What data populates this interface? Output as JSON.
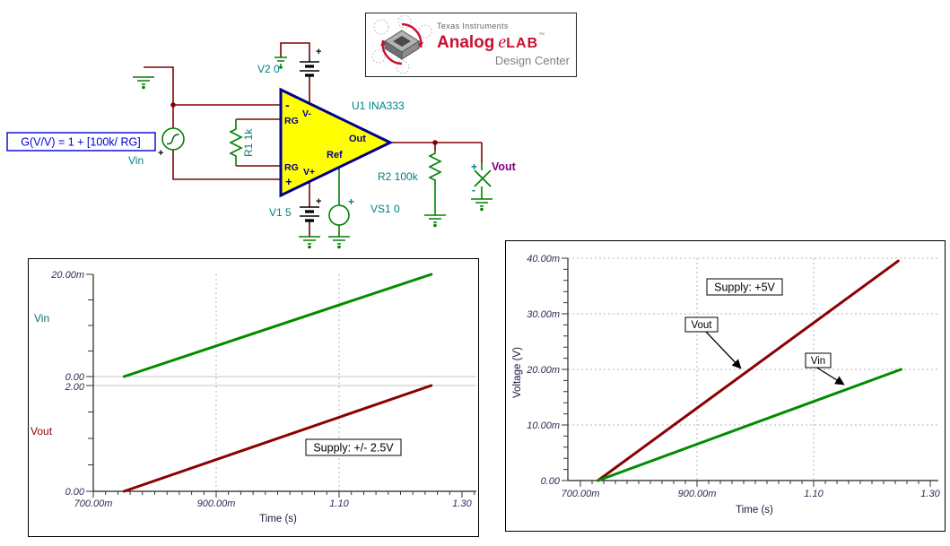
{
  "logo": {
    "brand": "Texas Instruments",
    "title_main": "Analog",
    "title_e": "e",
    "title_lab": "LAB",
    "trademark": "™",
    "subtitle": "Design Center"
  },
  "schematic": {
    "gain_formula": "G(V/V) = 1 + [100k/ RG]",
    "source_label": "Vin",
    "v2_label": "V2 0",
    "v1_label": "V1 5",
    "vs1_label": "VS1 0",
    "r1_label": "R1 1k",
    "r2_label": "R2 100k",
    "opamp_label": "U1 INA333",
    "vout_label": "Vout",
    "plus": "+",
    "minus": "-",
    "pins": {
      "inverting": "-",
      "rg_top": "RG",
      "rg_bottom": "RG",
      "noninverting": "+",
      "v_minus": "V-",
      "v_plus": "V+",
      "out": "Out",
      "ref": "Ref"
    },
    "colors": {
      "wire": "#800000",
      "component": "#008000",
      "label": "#008080",
      "pin_text": "#00008B",
      "opamp_fill": "#FFFF00",
      "opamp_border": "#00008B",
      "formula": "#0000D8",
      "vout_label": "#800080"
    }
  },
  "chart_data": [
    {
      "type": "line",
      "title": "",
      "xlabel": "Time (s)",
      "xlim": [
        0.7,
        1.3
      ],
      "x_axis_ticks": [
        0.7,
        0.9,
        1.1,
        1.3
      ],
      "x_tick_labels": [
        "700.00m",
        "900.00m",
        "1.10",
        "1.30"
      ],
      "grid": "vertical dashed gridlines at 0.9 and 1.1",
      "annotation": "Supply: +/- 2.5V",
      "panels": [
        {
          "ylabel": "Vin",
          "ylim": [
            0,
            0.02
          ],
          "y_tick_labels": [
            "20.00m",
            "0.00"
          ],
          "series": {
            "name": "Vin",
            "color": "#008C00",
            "x": [
              0.75,
              1.25
            ],
            "y": [
              0,
              0.02
            ]
          }
        },
        {
          "ylabel": "Vout",
          "ylim": [
            0,
            2
          ],
          "y_tick_labels": [
            "2.00",
            "0.00"
          ],
          "series": {
            "name": "Vout",
            "color": "#8B0000",
            "x": [
              0.75,
              1.25
            ],
            "y": [
              0,
              2.0
            ]
          }
        }
      ]
    },
    {
      "type": "line",
      "title": "",
      "xlabel": "Time (s)",
      "ylabel": "Voltage (V)",
      "xlim": [
        0.7,
        1.3
      ],
      "ylim": [
        0,
        0.04
      ],
      "x_axis_ticks": [
        0.7,
        0.9,
        1.1,
        1.3
      ],
      "x_tick_labels": [
        "700.00m",
        "900.00m",
        "1.10",
        "1.30"
      ],
      "y_tick_labels": [
        "40.00m",
        "30.00m",
        "20.00m",
        "10.00m",
        "0.00"
      ],
      "grid": "dashed gridlines both directions",
      "annotation": "Supply: +5V",
      "series": [
        {
          "name": "Vout",
          "color": "#8B0000",
          "x": [
            0.73,
            1.245
          ],
          "y": [
            0,
            0.0395
          ]
        },
        {
          "name": "Vin",
          "color": "#008C00",
          "x": [
            0.73,
            1.25
          ],
          "y": [
            0,
            0.02
          ]
        }
      ]
    }
  ]
}
